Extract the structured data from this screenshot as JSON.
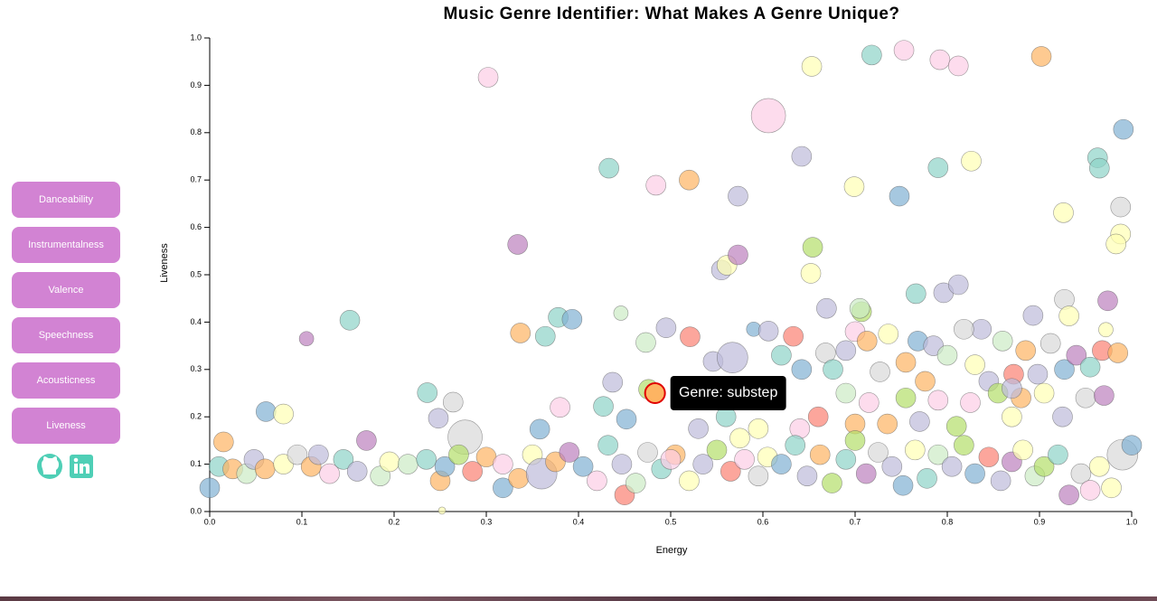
{
  "sidebar": {
    "buttons": [
      "Danceability",
      "Instrumentalness",
      "Valence",
      "Speechness",
      "Acousticness",
      "Liveness"
    ]
  },
  "chart_data": {
    "type": "bubble",
    "title": "Music Genre Identifier: What Makes A Genre Unique?",
    "x_label": "Energy",
    "y_label": "Liveness",
    "xlim": [
      0,
      1
    ],
    "ylim": [
      0,
      1
    ],
    "xticks": [
      {
        "value": 0,
        "label": "0.0"
      },
      0.1,
      0.2,
      0.3,
      0.4,
      0.5,
      0.6,
      0.7,
      0.8,
      0.9,
      {
        "value": 1,
        "label": "1.0"
      }
    ],
    "yticks": [
      {
        "value": 0,
        "label": "0.0"
      },
      0.1,
      0.2,
      0.3,
      0.4,
      0.5,
      0.6,
      0.7,
      0.8,
      0.9,
      {
        "value": 1,
        "label": "1.0"
      }
    ],
    "x": [
      0.302,
      0.606,
      0.653,
      0.718,
      0.753,
      0.792,
      0.812,
      0.902,
      0.991,
      0.433,
      0.484,
      0.52,
      0.573,
      0.642,
      0.699,
      0.748,
      0.79,
      0.826,
      0.926,
      0.963,
      0.965,
      0.988,
      0.988,
      0.983,
      0.334,
      0.555,
      0.561,
      0.573,
      0.654,
      0.652,
      0.152,
      0.105,
      0.337,
      0.364,
      0.378,
      0.393,
      0.446,
      0.473,
      0.495,
      0.521,
      0.546,
      0.567,
      0.59,
      0.606,
      0.669,
      0.707,
      0.705,
      0.766,
      0.796,
      0.812,
      0.837,
      0.893,
      0.927,
      0.932,
      0.974,
      0.972,
      0.236,
      0.264,
      0.248,
      0.277,
      0.061,
      0.08,
      0.38,
      0.358,
      0.427,
      0.437,
      0.452,
      0.476,
      0.015,
      0.483,
      0.62,
      0.633,
      0.642,
      0.668,
      0.676,
      0.69,
      0.7,
      0.713,
      0.727,
      0.736,
      0.755,
      0.768,
      0.776,
      0.785,
      0.8,
      0.818,
      0.83,
      0.845,
      0.86,
      0.872,
      0.885,
      0.898,
      0.912,
      0.927,
      0.94,
      0.955,
      0.968,
      0.985,
      0.755,
      0.77,
      0.79,
      0.81,
      0.825,
      0.855,
      0.87,
      0.88,
      0.905,
      0.925,
      0.95,
      0.97,
      0.69,
      0.7,
      0.715,
      0.735,
      0.66,
      0.64,
      0.595,
      0.56,
      0.53,
      0.575,
      0,
      0.01,
      0.025,
      0.04,
      0.048,
      0.06,
      0.08,
      0.095,
      0.11,
      0.118,
      0.13,
      0.145,
      0.16,
      0.185,
      0.195,
      0.215,
      0.235,
      0.25,
      0.255,
      0.27,
      0.285,
      0.3,
      0.318,
      0.318,
      0.335,
      0.35,
      0.36,
      0.375,
      0.39,
      0.405,
      0.42,
      0.432,
      0.447,
      0.45,
      0.462,
      0.475,
      0.49,
      0.505,
      0.52,
      0.535,
      0.55,
      0.565,
      0.58,
      0.595,
      0.605,
      0.62,
      0.635,
      0.648,
      0.662,
      0.675,
      0.69,
      0.7,
      0.712,
      0.725,
      0.74,
      0.752,
      0.765,
      0.778,
      0.79,
      0.805,
      0.818,
      0.83,
      0.845,
      0.858,
      0.87,
      0.882,
      0.895,
      0.905,
      0.92,
      0.932,
      0.945,
      0.955,
      0.965,
      0.978,
      0.99,
      1,
      0.252,
      0.5,
      0.87,
      0.17
    ],
    "values": [
      0.917,
      0.836,
      0.94,
      0.964,
      0.974,
      0.954,
      0.941,
      0.961,
      0.807,
      0.725,
      0.689,
      0.7,
      0.666,
      0.75,
      0.686,
      0.666,
      0.726,
      0.74,
      0.631,
      0.747,
      0.725,
      0.643,
      0.586,
      0.565,
      0.564,
      0.51,
      0.52,
      0.542,
      0.558,
      0.503,
      0.404,
      0.365,
      0.377,
      0.37,
      0.41,
      0.406,
      0.419,
      0.357,
      0.388,
      0.369,
      0.317,
      0.325,
      0.385,
      0.381,
      0.429,
      0.422,
      0.429,
      0.46,
      0.462,
      0.479,
      0.385,
      0.414,
      0.448,
      0.413,
      0.445,
      0.384,
      0.251,
      0.231,
      0.197,
      0.157,
      0.211,
      0.206,
      0.22,
      0.174,
      0.222,
      0.273,
      0.195,
      0.258,
      0.147,
      0.25,
      0.33,
      0.37,
      0.3,
      0.335,
      0.3,
      0.34,
      0.38,
      0.36,
      0.295,
      0.375,
      0.315,
      0.36,
      0.275,
      0.35,
      0.33,
      0.385,
      0.31,
      0.275,
      0.36,
      0.29,
      0.34,
      0.29,
      0.355,
      0.3,
      0.33,
      0.305,
      0.34,
      0.335,
      0.24,
      0.19,
      0.235,
      0.18,
      0.23,
      0.25,
      0.2,
      0.24,
      0.25,
      0.2,
      0.24,
      0.245,
      0.25,
      0.185,
      0.23,
      0.185,
      0.2,
      0.175,
      0.175,
      0.2,
      0.175,
      0.155,
      0.05,
      0.095,
      0.09,
      0.08,
      0.11,
      0.09,
      0.1,
      0.12,
      0.095,
      0.12,
      0.08,
      0.11,
      0.085,
      0.075,
      0.105,
      0.1,
      0.11,
      0.065,
      0.095,
      0.12,
      0.085,
      0.115,
      0.1,
      0.05,
      0.07,
      0.12,
      0.08,
      0.105,
      0.125,
      0.095,
      0.065,
      0.14,
      0.1,
      0.035,
      0.06,
      0.125,
      0.09,
      0.12,
      0.065,
      0.1,
      0.13,
      0.085,
      0.11,
      0.075,
      0.115,
      0.1,
      0.14,
      0.075,
      0.12,
      0.06,
      0.11,
      0.15,
      0.08,
      0.125,
      0.095,
      0.055,
      0.13,
      0.07,
      0.12,
      0.095,
      0.14,
      0.08,
      0.115,
      0.065,
      0.105,
      0.13,
      0.075,
      0.095,
      0.12,
      0.035,
      0.08,
      0.045,
      0.095,
      0.05,
      0.12,
      0.14,
      0.002,
      0.11,
      0.26,
      0.15
    ],
    "sizes": [
      11,
      19,
      11,
      11,
      11,
      11,
      11,
      11,
      11,
      11,
      11,
      11,
      11,
      11,
      11,
      11,
      11,
      11,
      11,
      11,
      11,
      11,
      11,
      11,
      11,
      11,
      11,
      11,
      11,
      11,
      11,
      8,
      11,
      11,
      11,
      11,
      8,
      11,
      11,
      11,
      11,
      17,
      8,
      11,
      11,
      11,
      11,
      11,
      11,
      11,
      11,
      11,
      11,
      11,
      11,
      8,
      11,
      11,
      11,
      19,
      11,
      11,
      11,
      11,
      11,
      11,
      11,
      11,
      11,
      11,
      11,
      11,
      11,
      11,
      11,
      11,
      11,
      11,
      11,
      11,
      11,
      11,
      11,
      11,
      11,
      11,
      11,
      11,
      11,
      11,
      11,
      11,
      11,
      11,
      11,
      11,
      11,
      11,
      11,
      11,
      11,
      11,
      11,
      11,
      11,
      11,
      11,
      11,
      11,
      11,
      11,
      11,
      11,
      11,
      11,
      11,
      11,
      11,
      11,
      11,
      11,
      11,
      11,
      11,
      11,
      11,
      11,
      11,
      11,
      11,
      11,
      11,
      11,
      11,
      11,
      11,
      11,
      11,
      11,
      11,
      11,
      11,
      11,
      11,
      11,
      11,
      17,
      11,
      11,
      11,
      11,
      11,
      11,
      11,
      11,
      11,
      11,
      11,
      11,
      11,
      11,
      11,
      11,
      11,
      11,
      11,
      11,
      11,
      11,
      11,
      11,
      11,
      11,
      11,
      11,
      11,
      11,
      11,
      11,
      11,
      11,
      11,
      11,
      11,
      11,
      11,
      11,
      11,
      11,
      11,
      11,
      11,
      11,
      11,
      17,
      11,
      4,
      11,
      11,
      11
    ],
    "colors": [
      "#fccde5",
      "#fccde5",
      "#ffffb3",
      "#8dd3c7",
      "#fccde5",
      "#fccde5",
      "#fccde5",
      "#fdb462",
      "#80b1d3",
      "#8dd3c7",
      "#fccde5",
      "#fdb462",
      "#bebada",
      "#bebada",
      "#ffffb3",
      "#80b1d3",
      "#8dd3c7",
      "#ffffb3",
      "#ffffb3",
      "#8dd3c7",
      "#8dd3c7",
      "#d9d9d9",
      "#ffffb3",
      "#ffffb3",
      "#bc80bd",
      "#bebada",
      "#ffffb3",
      "#bc80bd",
      "#b3de69",
      "#ffffb3",
      "#8dd3c7",
      "#bc80bd",
      "#fdb462",
      "#8dd3c7",
      "#8dd3c7",
      "#80b1d3",
      "#ccebc5",
      "#ccebc5",
      "#bebada",
      "#fb8072",
      "#bebada",
      "#bebada",
      "#80b1d3",
      "#bebada",
      "#bebada",
      "#b3de69",
      "#ccebc5",
      "#8dd3c7",
      "#bebada",
      "#bebada",
      "#bebada",
      "#bebada",
      "#d9d9d9",
      "#ffffb3",
      "#bc80bd",
      "#ffffb3",
      "#8dd3c7",
      "#d9d9d9",
      "#bebada",
      "#d9d9d9",
      "#80b1d3",
      "#ffffb3",
      "#fccde5",
      "#80b1d3",
      "#8dd3c7",
      "#bebada",
      "#80b1d3",
      "#b3de69",
      "#fdb462",
      "#fdb462",
      "#8dd3c7",
      "#fb8072",
      "#80b1d3",
      "#d9d9d9",
      "#8dd3c7",
      "#bebada",
      "#fccde5",
      "#fdb462",
      "#d9d9d9",
      "#ffffb3",
      "#fdb462",
      "#80b1d3",
      "#fdb462",
      "#bebada",
      "#ccebc5",
      "#d9d9d9",
      "#ffffb3",
      "#bebada",
      "#ccebc5",
      "#fb8072",
      "#fdb462",
      "#bebada",
      "#d9d9d9",
      "#80b1d3",
      "#bc80bd",
      "#8dd3c7",
      "#fb8072",
      "#fdb462",
      "#b3de69",
      "#bebada",
      "#fccde5",
      "#b3de69",
      "#fccde5",
      "#b3de69",
      "#ffffb3",
      "#fdb462",
      "#ffffb3",
      "#bebada",
      "#d9d9d9",
      "#bc80bd",
      "#ccebc5",
      "#fdb462",
      "#fccde5",
      "#fdb462",
      "#fb8072",
      "#fccde5",
      "#ffffb3",
      "#8dd3c7",
      "#bebada",
      "#ffffb3",
      "#80b1d3",
      "#8dd3c7",
      "#fdb462",
      "#ccebc5",
      "#bebada",
      "#fdb462",
      "#ffffb3",
      "#d9d9d9",
      "#fdb462",
      "#bebada",
      "#fccde5",
      "#8dd3c7",
      "#bebada",
      "#ccebc5",
      "#ffffb3",
      "#ccebc5",
      "#8dd3c7",
      "#fdb462",
      "#80b1d3",
      "#b3de69",
      "#fb8072",
      "#fdb462",
      "#fccde5",
      "#80b1d3",
      "#fdb462",
      "#ffffb3",
      "#bebada",
      "#fdb462",
      "#bc80bd",
      "#80b1d3",
      "#fccde5",
      "#8dd3c7",
      "#bebada",
      "#fb8072",
      "#ccebc5",
      "#d9d9d9",
      "#8dd3c7",
      "#fdb462",
      "#ffffb3",
      "#bebada",
      "#b3de69",
      "#fb8072",
      "#fccde5",
      "#d9d9d9",
      "#ffffb3",
      "#80b1d3",
      "#8dd3c7",
      "#bebada",
      "#fdb462",
      "#b3de69",
      "#8dd3c7",
      "#b3de69",
      "#bc80bd",
      "#d9d9d9",
      "#bebada",
      "#80b1d3",
      "#ffffb3",
      "#8dd3c7",
      "#ccebc5",
      "#bebada",
      "#b3de69",
      "#80b1d3",
      "#fb8072",
      "#bebada",
      "#bc80bd",
      "#ffffb3",
      "#ccebc5",
      "#b3de69",
      "#8dd3c7",
      "#bc80bd",
      "#d9d9d9",
      "#fccde5",
      "#ffffb3",
      "#ffffb3",
      "#d9d9d9",
      "#80b1d3",
      "#ffffb3",
      "#fccde5",
      "#bebada",
      "#bc80bd"
    ],
    "tooltip": {
      "text": "Genre: substep",
      "point": 69
    }
  }
}
